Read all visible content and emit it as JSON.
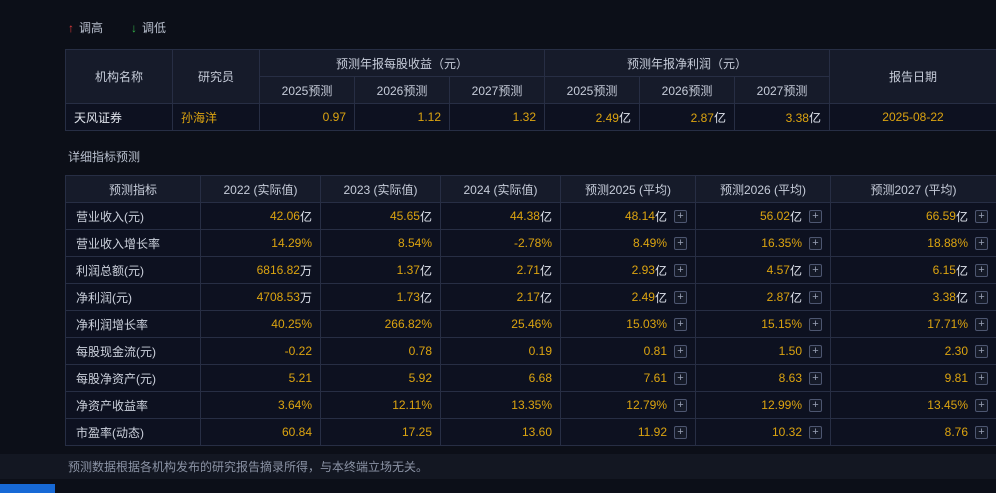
{
  "colors": {
    "background": "#0c0f18",
    "header_bg": "#161b2a",
    "cell_bg": "#0d1120",
    "border": "#272e44",
    "accent_yellow": "#dca410",
    "up_red": "#e23c3c",
    "down_green": "#33b448"
  },
  "page": {
    "legend": {
      "up_label": "调高",
      "down_label": "调低"
    },
    "section_title": "详细指标预测",
    "disclaimer": "预测数据根据各机构发布的研究报告摘录所得，与本终端立场无关。"
  },
  "forecast_table": {
    "headers": {
      "org": "机构名称",
      "researcher": "研究员",
      "eps_group": "预测年报每股收益（元）",
      "profit_group": "预测年报净利润（元）",
      "report_date": "报告日期",
      "sub": [
        "2025预测",
        "2026预测",
        "2027预测",
        "2025预测",
        "2026预测",
        "2027预测"
      ]
    },
    "rows": [
      {
        "org": "天风证券",
        "researcher": "孙海洋",
        "eps": [
          "0.97",
          "1.12",
          "1.32"
        ],
        "profit": [
          {
            "v": "2.49",
            "u": "亿"
          },
          {
            "v": "2.87",
            "u": "亿"
          },
          {
            "v": "3.38",
            "u": "亿"
          }
        ],
        "date": "2025-08-22"
      }
    ]
  },
  "detail_table": {
    "columns": [
      "预测指标",
      "2022 (实际值)",
      "2023 (实际值)",
      "2024 (实际值)",
      "预测2025 (平均)",
      "预测2026 (平均)",
      "预测2027 (平均)"
    ],
    "plus_icon": "+",
    "rows": [
      {
        "label": "营业收入(元)",
        "values": [
          {
            "v": "42.06",
            "u": "亿"
          },
          {
            "v": "45.65",
            "u": "亿"
          },
          {
            "v": "44.38",
            "u": "亿"
          },
          {
            "v": "48.14",
            "u": "亿"
          },
          {
            "v": "56.02",
            "u": "亿"
          },
          {
            "v": "66.59",
            "u": "亿"
          }
        ]
      },
      {
        "label": "营业收入增长率",
        "values": [
          {
            "v": "14.29%",
            "u": ""
          },
          {
            "v": "8.54%",
            "u": ""
          },
          {
            "v": "-2.78%",
            "u": ""
          },
          {
            "v": "8.49%",
            "u": ""
          },
          {
            "v": "16.35%",
            "u": ""
          },
          {
            "v": "18.88%",
            "u": ""
          }
        ]
      },
      {
        "label": "利润总额(元)",
        "values": [
          {
            "v": "6816.82",
            "u": "万"
          },
          {
            "v": "1.37",
            "u": "亿"
          },
          {
            "v": "2.71",
            "u": "亿"
          },
          {
            "v": "2.93",
            "u": "亿"
          },
          {
            "v": "4.57",
            "u": "亿"
          },
          {
            "v": "6.15",
            "u": "亿"
          }
        ]
      },
      {
        "label": "净利润(元)",
        "values": [
          {
            "v": "4708.53",
            "u": "万"
          },
          {
            "v": "1.73",
            "u": "亿"
          },
          {
            "v": "2.17",
            "u": "亿"
          },
          {
            "v": "2.49",
            "u": "亿"
          },
          {
            "v": "2.87",
            "u": "亿"
          },
          {
            "v": "3.38",
            "u": "亿"
          }
        ]
      },
      {
        "label": "净利润增长率",
        "values": [
          {
            "v": "40.25%",
            "u": ""
          },
          {
            "v": "266.82%",
            "u": ""
          },
          {
            "v": "25.46%",
            "u": ""
          },
          {
            "v": "15.03%",
            "u": ""
          },
          {
            "v": "15.15%",
            "u": ""
          },
          {
            "v": "17.71%",
            "u": ""
          }
        ]
      },
      {
        "label": "每股现金流(元)",
        "values": [
          {
            "v": "-0.22",
            "u": ""
          },
          {
            "v": "0.78",
            "u": ""
          },
          {
            "v": "0.19",
            "u": ""
          },
          {
            "v": "0.81",
            "u": ""
          },
          {
            "v": "1.50",
            "u": ""
          },
          {
            "v": "2.30",
            "u": ""
          }
        ]
      },
      {
        "label": "每股净资产(元)",
        "values": [
          {
            "v": "5.21",
            "u": ""
          },
          {
            "v": "5.92",
            "u": ""
          },
          {
            "v": "6.68",
            "u": ""
          },
          {
            "v": "7.61",
            "u": ""
          },
          {
            "v": "8.63",
            "u": ""
          },
          {
            "v": "9.81",
            "u": ""
          }
        ]
      },
      {
        "label": "净资产收益率",
        "values": [
          {
            "v": "3.64%",
            "u": ""
          },
          {
            "v": "12.11%",
            "u": ""
          },
          {
            "v": "13.35%",
            "u": ""
          },
          {
            "v": "12.79%",
            "u": ""
          },
          {
            "v": "12.99%",
            "u": ""
          },
          {
            "v": "13.45%",
            "u": ""
          }
        ]
      },
      {
        "label": "市盈率(动态)",
        "values": [
          {
            "v": "60.84",
            "u": ""
          },
          {
            "v": "17.25",
            "u": ""
          },
          {
            "v": "13.60",
            "u": ""
          },
          {
            "v": "11.92",
            "u": ""
          },
          {
            "v": "10.32",
            "u": ""
          },
          {
            "v": "8.76",
            "u": ""
          }
        ]
      }
    ]
  }
}
